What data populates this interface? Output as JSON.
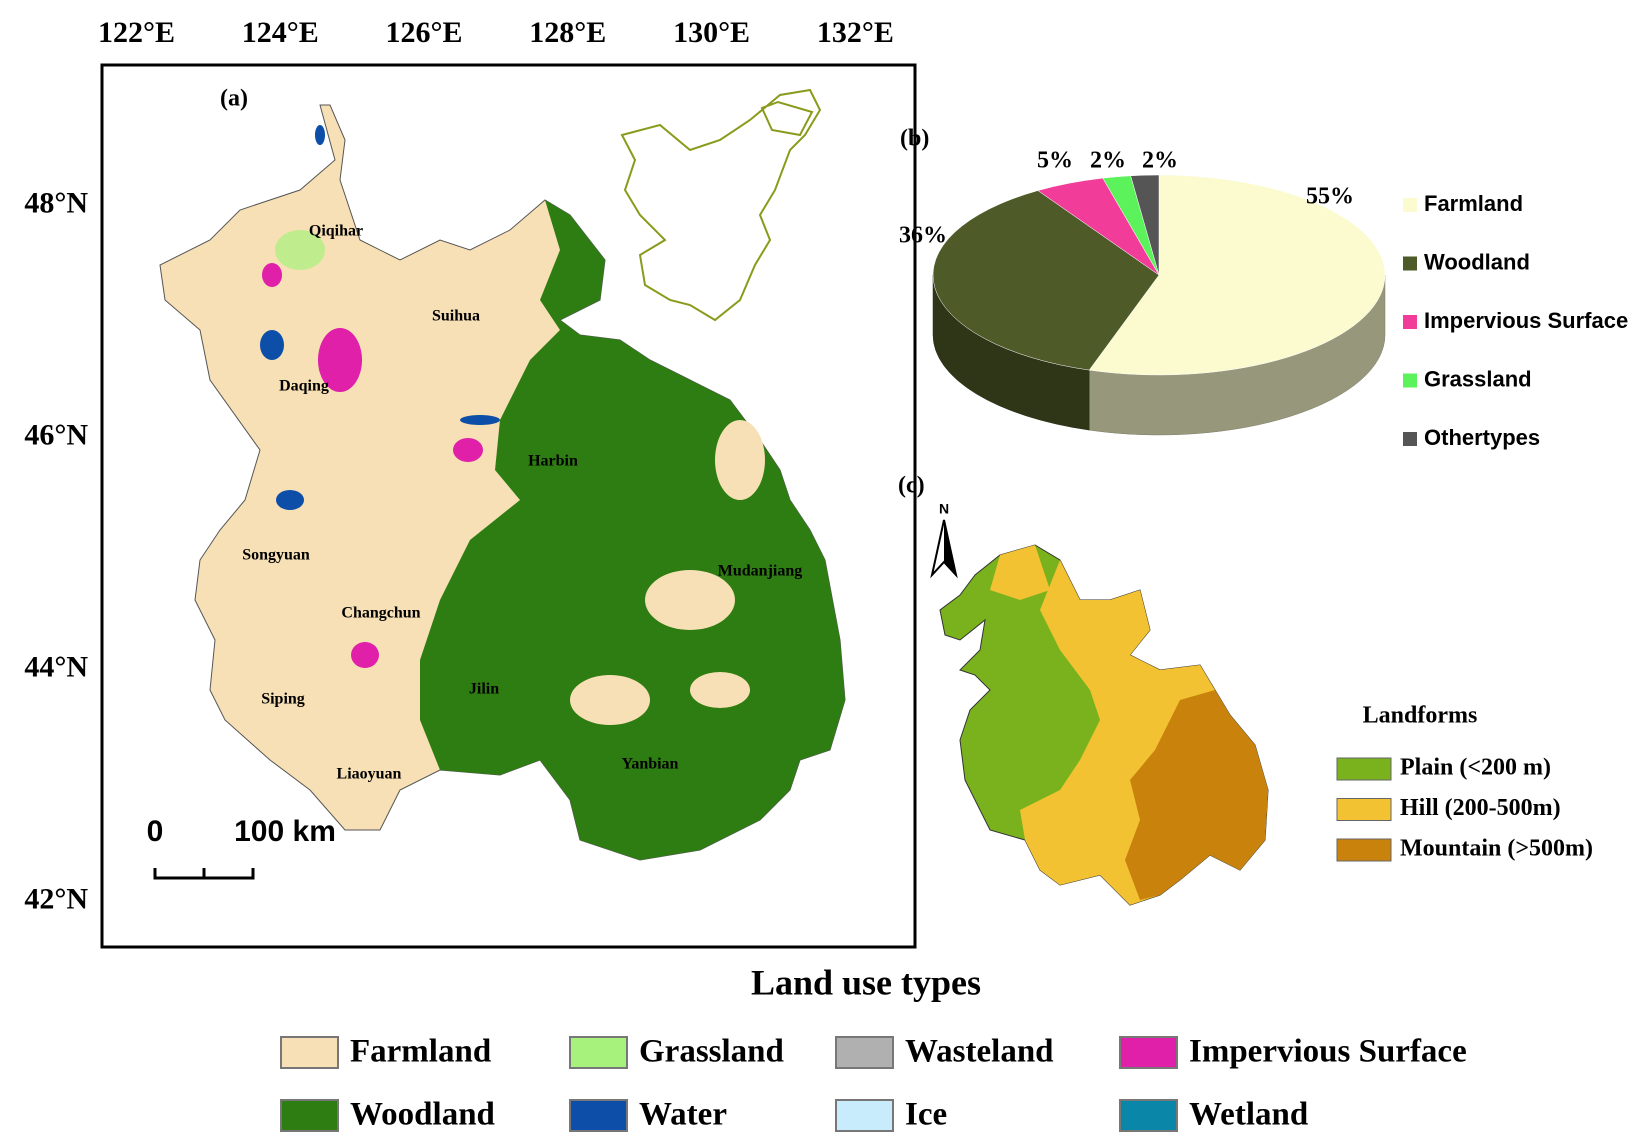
{
  "map": {
    "panel_label": "(a)",
    "xlim": [
      121.52,
      132.83
    ],
    "ylim": [
      41.61,
      49.21
    ],
    "lon_ticks": [
      {
        "value": 122,
        "label": "122°E"
      },
      {
        "value": 124,
        "label": "124°E"
      },
      {
        "value": 126,
        "label": "126°E"
      },
      {
        "value": 128,
        "label": "128°E"
      },
      {
        "value": 130,
        "label": "130°E"
      },
      {
        "value": 132,
        "label": "132°E"
      }
    ],
    "lat_ticks": [
      {
        "value": 48,
        "label": "48°N"
      },
      {
        "value": 46,
        "label": "46°N"
      },
      {
        "value": 44,
        "label": "44°N"
      },
      {
        "value": 42,
        "label": "42°N"
      }
    ],
    "cities": [
      "Qiqihar",
      "Suihua",
      "Daqing",
      "Harbin",
      "Songyuan",
      "Mudanjiang",
      "Changchun",
      "Siping",
      "Jilin",
      "Liaoyuan",
      "Yanbian"
    ],
    "scale_bar": [
      "0",
      "100 km"
    ]
  },
  "chart_data": {
    "type": "pie",
    "panel_label": "(b)",
    "categories": [
      "Farmland",
      "Woodland",
      "Impervious Surface",
      "Grassland",
      "Othertypes"
    ],
    "values": [
      55,
      36,
      5,
      2,
      2
    ],
    "value_labels": [
      "55%",
      "36%",
      "5%",
      "2%",
      "2%"
    ],
    "colors": [
      "#fbfbcf",
      "#4e5a28",
      "#f23c9a",
      "#5cf25c",
      "#555555"
    ]
  },
  "landforms": {
    "panel_label": "(c)",
    "north": "N",
    "title": "Landforms",
    "items": [
      {
        "label": "Plain (<200 m)",
        "color": "#79b21c"
      },
      {
        "label": "Hill (200-500m)",
        "color": "#f2c232"
      },
      {
        "label": "Mountain (>500m)",
        "color": "#c9830c"
      }
    ]
  },
  "legend": {
    "title": "Land use types",
    "items": [
      {
        "label": "Farmland",
        "color": "#f7e0b5"
      },
      {
        "label": "Grassland",
        "color": "#a6f27c"
      },
      {
        "label": "Wasteland",
        "color": "#b0b0b0"
      },
      {
        "label": "Impervious Surface",
        "color": "#e020a8"
      },
      {
        "label": "Woodland",
        "color": "#2e7d12"
      },
      {
        "label": "Water",
        "color": "#0c4ea8"
      },
      {
        "label": "Ice",
        "color": "#c8ecfc"
      },
      {
        "label": "Wetland",
        "color": "#0a86a8"
      }
    ]
  }
}
